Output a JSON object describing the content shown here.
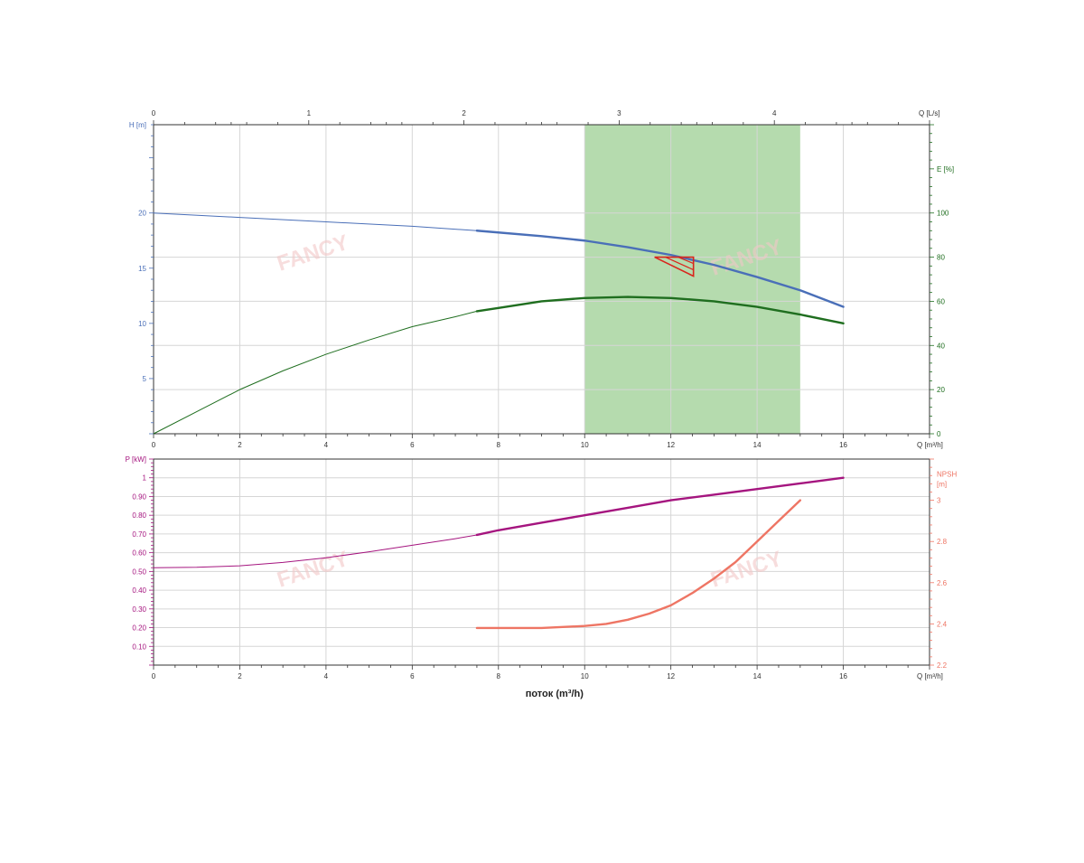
{
  "colors": {
    "head": "#4a6fb8",
    "efficiency": "#1f6e1f",
    "power": "#a5157f",
    "npsh": "#ee7564",
    "operating_range": "#a8d5a0",
    "grid": "#d6d6d6",
    "axis": "#333333",
    "marker": "#d9251c"
  },
  "watermark": "FANCY",
  "chart_data": [
    {
      "type": "line",
      "name": "head-efficiency",
      "x_axis": {
        "label": "Q [m³/h]",
        "range": [
          0,
          18
        ],
        "ticks": [
          0,
          2,
          4,
          6,
          8,
          10,
          12,
          14,
          16
        ]
      },
      "top_axis": {
        "label": "Q [L/s]",
        "range": [
          0,
          5
        ],
        "ticks": [
          0,
          1,
          2,
          3,
          4
        ]
      },
      "left_axis": {
        "label": "H [m]",
        "range": [
          0,
          28
        ],
        "ticks": [
          5,
          10,
          15,
          20
        ]
      },
      "right_axis": {
        "label": "E [%]",
        "range": [
          0,
          140
        ],
        "ticks": [
          0,
          20,
          40,
          60,
          80,
          100
        ]
      },
      "grid": true,
      "operating_range": [
        10,
        15
      ],
      "duty_point": {
        "q": 12,
        "h": 16
      },
      "series": [
        {
          "key": "head",
          "axis": "left",
          "x": [
            0,
            2,
            4,
            6,
            7.5,
            9,
            10,
            11,
            12,
            13,
            14,
            15,
            16
          ],
          "y": [
            20.0,
            19.6,
            19.2,
            18.8,
            18.4,
            17.9,
            17.5,
            16.9,
            16.2,
            15.3,
            14.2,
            13.0,
            11.5
          ],
          "bold_from": 7.5
        },
        {
          "key": "efficiency",
          "axis": "right",
          "x": [
            0,
            1,
            2,
            3,
            4,
            5,
            6,
            7,
            7.5,
            8,
            9,
            10,
            11,
            12,
            13,
            14,
            15,
            16
          ],
          "y": [
            0,
            10,
            20,
            28.5,
            36,
            42.5,
            48.5,
            53,
            55.5,
            57,
            60,
            61.5,
            62,
            61.5,
            60,
            57.5,
            54,
            50
          ],
          "bold_from": 7.5
        }
      ]
    },
    {
      "type": "line",
      "name": "power-npsh",
      "x_axis": {
        "label": "Q [m³/h]",
        "range": [
          0,
          18
        ],
        "ticks": [
          0,
          2,
          4,
          6,
          8,
          10,
          12,
          14,
          16
        ]
      },
      "left_axis": {
        "label": "P [kW]",
        "range": [
          0,
          1.1
        ],
        "ticks": [
          "0.10",
          "0.20",
          "0.30",
          "0.40",
          "0.50",
          "0.60",
          "0.70",
          "0.80",
          "0.90",
          "1"
        ]
      },
      "right_axis": {
        "label_1": "NPSH",
        "label_2": "[m]",
        "range": [
          2.2,
          3.2
        ],
        "ticks": [
          "2.2",
          "2.4",
          "2.6",
          "2.8",
          "3"
        ]
      },
      "xlabel": "поток (m³/h)",
      "grid": true,
      "series": [
        {
          "key": "power",
          "axis": "left",
          "x": [
            0,
            1,
            2,
            3,
            4,
            5,
            6,
            7,
            7.5,
            8,
            9,
            10,
            11,
            12,
            13,
            14,
            15,
            16
          ],
          "y": [
            0.52,
            0.522,
            0.53,
            0.548,
            0.573,
            0.605,
            0.64,
            0.675,
            0.695,
            0.72,
            0.76,
            0.8,
            0.84,
            0.88,
            0.91,
            0.94,
            0.97,
            1.0
          ],
          "bold_from": 7.5
        },
        {
          "key": "npsh",
          "axis": "right",
          "x": [
            7.5,
            8,
            9,
            10,
            10.5,
            11,
            11.5,
            12,
            12.5,
            13,
            13.5,
            14,
            14.5,
            15
          ],
          "y": [
            2.38,
            2.38,
            2.38,
            2.39,
            2.4,
            2.42,
            2.45,
            2.49,
            2.55,
            2.62,
            2.7,
            2.8,
            2.9,
            3.0
          ],
          "bold_from": 7.5
        }
      ]
    }
  ]
}
